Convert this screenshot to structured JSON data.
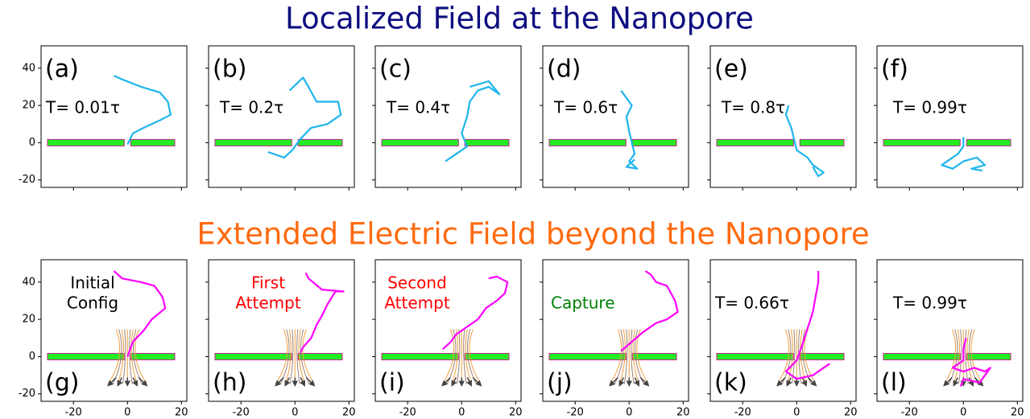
{
  "figure": {
    "row_titles": [
      {
        "text": "Localized Field at the Nanopore",
        "color": "#0d0d80"
      },
      {
        "text": "Extended Electric Field beyond the Nanopore",
        "color": "#ff6a10"
      }
    ]
  },
  "chart_data": [
    {
      "type": "line",
      "label": "(a)",
      "annotation": [
        "T= 0.01τ"
      ],
      "annotation_color": "#000000",
      "field": false,
      "color": "#1fb5ec",
      "x": [
        0,
        2,
        6,
        12,
        16,
        15,
        12,
        5,
        -2,
        -5
      ],
      "y": [
        -1,
        5,
        8,
        12,
        15,
        22,
        27,
        30,
        34,
        36
      ],
      "xlim": [
        -32,
        22
      ],
      "ylim": [
        -24,
        52
      ],
      "xticks": [
        -20,
        0,
        20
      ],
      "yticks": [
        -20,
        0,
        20,
        40
      ]
    },
    {
      "type": "line",
      "label": "(b)",
      "annotation": [
        "T= 0.2τ"
      ],
      "annotation_color": "#000000",
      "field": false,
      "color": "#1fb5ec",
      "x": [
        -10,
        -4,
        -1,
        2,
        6,
        12,
        17,
        16,
        8,
        5,
        3,
        -2
      ],
      "y": [
        -5,
        -8,
        -4,
        2,
        8,
        10,
        15,
        22,
        22,
        30,
        35,
        28
      ],
      "xlim": [
        -32,
        22
      ],
      "ylim": [
        -24,
        52
      ],
      "xticks": [
        -20,
        0,
        20
      ],
      "yticks": [
        -20,
        0,
        20,
        40
      ]
    },
    {
      "type": "line",
      "label": "(c)",
      "annotation": [
        "T= 0.4τ"
      ],
      "annotation_color": "#000000",
      "field": false,
      "color": "#1fb5ec",
      "x": [
        -6,
        -2,
        2,
        0,
        2,
        3,
        6,
        10,
        14,
        10,
        3
      ],
      "y": [
        -10,
        -6,
        -2,
        5,
        14,
        22,
        28,
        30,
        26,
        33,
        30
      ],
      "xlim": [
        -32,
        22
      ],
      "ylim": [
        -24,
        52
      ],
      "xticks": [
        -20,
        0,
        20
      ],
      "yticks": [
        -20,
        0,
        20,
        40
      ]
    },
    {
      "type": "line",
      "label": "(d)",
      "annotation": [
        "T= 0.6τ"
      ],
      "annotation_color": "#000000",
      "field": false,
      "color": "#1fb5ec",
      "x": [
        -3,
        -1,
        1,
        -1,
        0,
        1,
        2,
        0,
        3,
        -1,
        2
      ],
      "y": [
        28,
        24,
        20,
        14,
        6,
        0,
        -6,
        -10,
        -14,
        -13,
        -9
      ],
      "xlim": [
        -32,
        22
      ],
      "ylim": [
        -24,
        52
      ],
      "xticks": [
        -20,
        0,
        20
      ],
      "yticks": [
        -20,
        0,
        20,
        40
      ]
    },
    {
      "type": "line",
      "label": "(e)",
      "annotation": [
        "T= 0.8τ"
      ],
      "annotation_color": "#000000",
      "field": false,
      "color": "#1fb5ec",
      "x": [
        -3,
        -4,
        -2,
        -1,
        0,
        4,
        6,
        10,
        8,
        6
      ],
      "y": [
        20,
        15,
        8,
        2,
        -4,
        -8,
        -12,
        -16,
        -18,
        -13
      ],
      "xlim": [
        -32,
        22
      ],
      "ylim": [
        -24,
        52
      ],
      "xticks": [
        -20,
        0,
        20
      ],
      "yticks": [
        -20,
        0,
        20,
        40
      ]
    },
    {
      "type": "line",
      "label": "(f)",
      "annotation": [
        "T= 0.99τ"
      ],
      "annotation_color": "#000000",
      "field": false,
      "color": "#1fb5ec",
      "x": [
        0,
        0,
        -2,
        -8,
        -4,
        0,
        5,
        8,
        3,
        7
      ],
      "y": [
        3,
        -2,
        -6,
        -12,
        -14,
        -10,
        -8,
        -12,
        -14,
        -15
      ],
      "xlim": [
        -32,
        22
      ],
      "ylim": [
        -24,
        52
      ],
      "xticks": [
        -20,
        0,
        20
      ],
      "yticks": [
        -20,
        0,
        20,
        40
      ]
    },
    {
      "type": "line",
      "label": "(g)",
      "annotation": [
        "Initial",
        "Config"
      ],
      "annotation_color": "#000000",
      "field": true,
      "color": "#ff00ff",
      "x": [
        0,
        2,
        6,
        9,
        14,
        13,
        10,
        5,
        -2,
        -5
      ],
      "y": [
        0,
        8,
        14,
        20,
        26,
        32,
        38,
        40,
        42,
        46
      ],
      "xlim": [
        -32,
        22
      ],
      "ylim": [
        -24,
        52
      ],
      "xticks": [
        -20,
        0,
        20
      ],
      "yticks": [
        -20,
        0,
        20,
        40
      ]
    },
    {
      "type": "line",
      "label": "(h)",
      "annotation": [
        "First",
        "Attempt"
      ],
      "annotation_color": "#ff0000",
      "field": true,
      "color": "#ff00ff",
      "x": [
        2,
        3,
        6,
        8,
        10,
        12,
        15,
        18,
        10,
        5,
        4
      ],
      "y": [
        2,
        5,
        10,
        17,
        22,
        28,
        35,
        35,
        36,
        42,
        45
      ],
      "xlim": [
        -32,
        22
      ],
      "ylim": [
        -24,
        52
      ],
      "xticks": [
        -20,
        0,
        20
      ],
      "yticks": [
        -20,
        0,
        20,
        40
      ]
    },
    {
      "type": "line",
      "label": "(i)",
      "annotation": [
        "Second",
        "Attempt"
      ],
      "annotation_color": "#ff0000",
      "field": true,
      "color": "#ff00ff",
      "x": [
        -7,
        -4,
        -2,
        2,
        6,
        9,
        13,
        16,
        17,
        13,
        10
      ],
      "y": [
        4,
        8,
        12,
        16,
        20,
        26,
        30,
        34,
        40,
        43,
        42
      ],
      "xlim": [
        -32,
        22
      ],
      "ylim": [
        -24,
        52
      ],
      "xticks": [
        -20,
        0,
        20
      ],
      "yticks": [
        -20,
        0,
        20,
        40
      ]
    },
    {
      "type": "line",
      "label": "(j)",
      "annotation": [
        "Capture"
      ],
      "annotation_color": "#008000",
      "field": true,
      "color": "#ff00ff",
      "x": [
        -3,
        1,
        5,
        10,
        14,
        18,
        17,
        14,
        10,
        8,
        6
      ],
      "y": [
        3,
        8,
        13,
        18,
        20,
        24,
        30,
        38,
        40,
        44,
        46
      ],
      "xlim": [
        -32,
        22
      ],
      "ylim": [
        -24,
        52
      ],
      "xticks": [
        -20,
        0,
        20
      ],
      "yticks": [
        -20,
        0,
        20,
        40
      ]
    },
    {
      "type": "line",
      "label": "(k)",
      "annotation": [
        "T= 0.66τ"
      ],
      "annotation_color": "#000000",
      "field": true,
      "color": "#ff00ff",
      "x": [
        8,
        8,
        7,
        6,
        4,
        2,
        0,
        -4,
        0,
        6,
        12,
        8
      ],
      "y": [
        46,
        40,
        32,
        24,
        15,
        6,
        -2,
        -8,
        -12,
        -10,
        -4,
        -8
      ],
      "xlim": [
        -32,
        22
      ],
      "ylim": [
        -24,
        52
      ],
      "xticks": [
        -20,
        0,
        20
      ],
      "yticks": [
        -20,
        0,
        20,
        40
      ]
    },
    {
      "type": "line",
      "label": "(l)",
      "annotation": [
        "T= 0.99τ"
      ],
      "annotation_color": "#000000",
      "field": true,
      "color": "#ff00ff",
      "x": [
        1,
        0,
        0,
        -4,
        0,
        4,
        8,
        10,
        6,
        0,
        -1
      ],
      "y": [
        10,
        4,
        -2,
        -6,
        -8,
        -6,
        -8,
        -6,
        -14,
        -12,
        -16
      ],
      "xlim": [
        -32,
        22
      ],
      "ylim": [
        -24,
        52
      ],
      "xticks": [
        -20,
        0,
        20
      ],
      "yticks": [
        -20,
        0,
        20,
        40
      ]
    }
  ]
}
